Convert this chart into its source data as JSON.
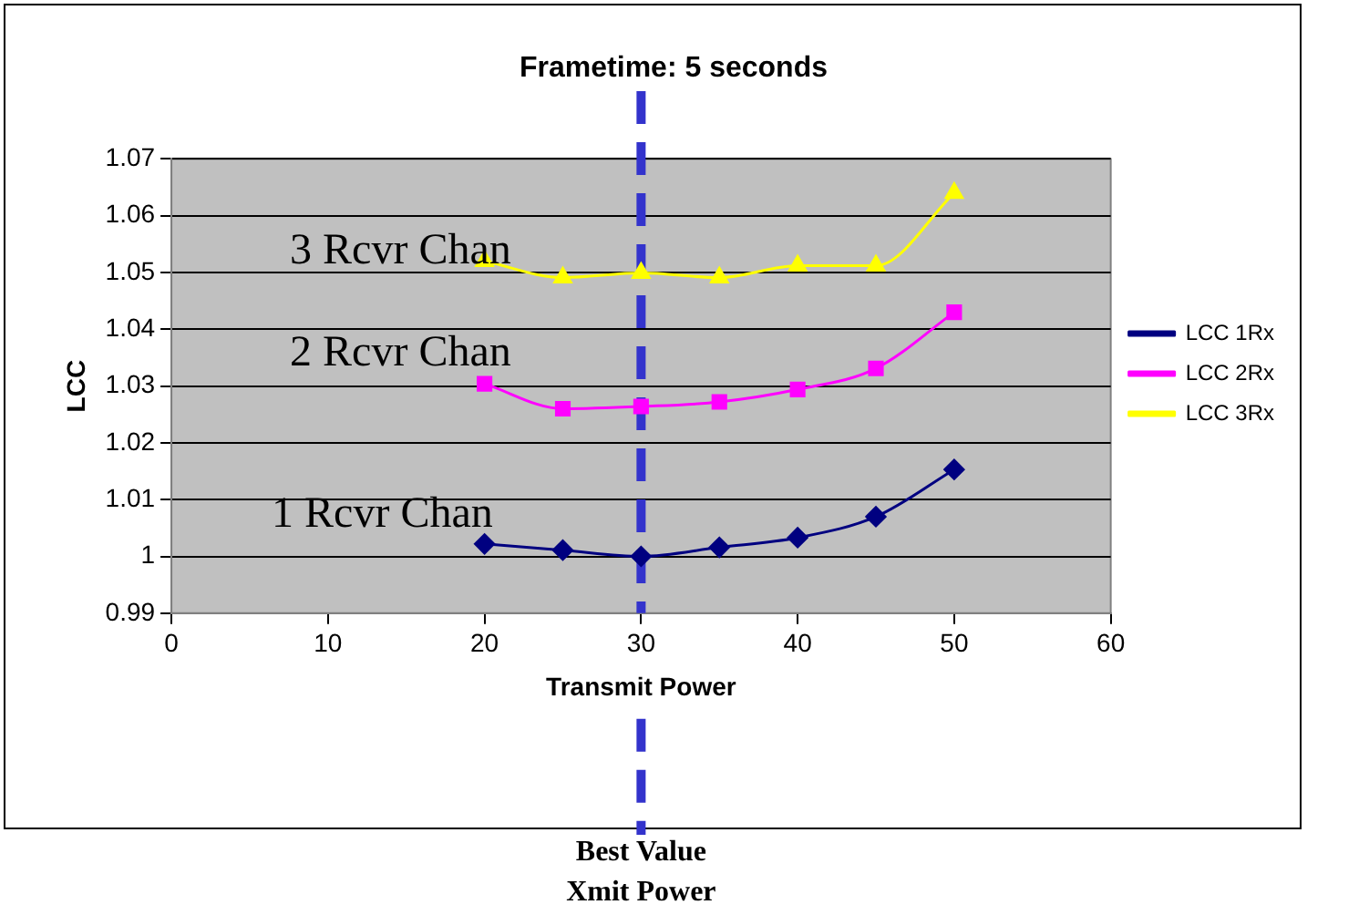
{
  "chart_data": {
    "type": "line",
    "title": "Frametime: 5 seconds",
    "xlabel": "Transmit Power",
    "ylabel": "LCC",
    "x": [
      20,
      25,
      30,
      35,
      40,
      45,
      50
    ],
    "xlim": [
      0,
      60
    ],
    "xticks": [
      0,
      10,
      20,
      30,
      40,
      50,
      60
    ],
    "ylim": [
      0.99,
      1.07
    ],
    "yticks": [
      0.99,
      1,
      1.01,
      1.02,
      1.03,
      1.04,
      1.05,
      1.06,
      1.07
    ],
    "grid": "y",
    "legend": "right",
    "series": [
      {
        "name": "LCC 1Rx",
        "color": "#000080",
        "marker": "diamond",
        "values": [
          1.0022,
          1.0011,
          1.0,
          1.0016,
          1.0033,
          1.007,
          1.0153
        ]
      },
      {
        "name": "LCC 2Rx",
        "color": "#ff00ff",
        "marker": "square",
        "values": [
          1.0304,
          1.026,
          1.0264,
          1.0272,
          1.0294,
          1.0331,
          1.043
        ]
      },
      {
        "name": "LCC 3Rx",
        "color": "#ffff00",
        "marker": "triangle",
        "values": [
          1.052,
          1.0491,
          1.0499,
          1.0491,
          1.0512,
          1.0512,
          1.064
        ]
      }
    ],
    "ref_lines": [
      {
        "axis": "x",
        "value": 30,
        "color": "#3333cc",
        "line_style": "dashed"
      }
    ],
    "annotations": [
      "3 Rcvr Chan",
      "2 Rcvr Chan",
      "1 Rcvr Chan",
      "Best Value\nXmit Power"
    ]
  }
}
